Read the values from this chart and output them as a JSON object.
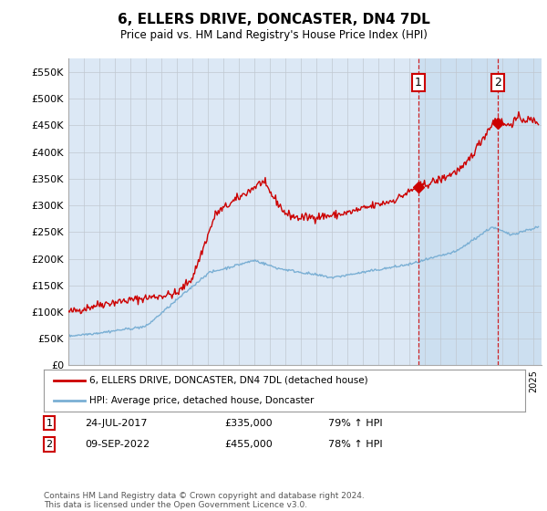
{
  "title": "6, ELLERS DRIVE, DONCASTER, DN4 7DL",
  "subtitle": "Price paid vs. HM Land Registry's House Price Index (HPI)",
  "ylabel_ticks": [
    "£0",
    "£50K",
    "£100K",
    "£150K",
    "£200K",
    "£250K",
    "£300K",
    "£350K",
    "£400K",
    "£450K",
    "£500K",
    "£550K"
  ],
  "ytick_values": [
    0,
    50000,
    100000,
    150000,
    200000,
    250000,
    300000,
    350000,
    400000,
    450000,
    500000,
    550000
  ],
  "ylim": [
    0,
    575000
  ],
  "red_line_color": "#cc0000",
  "blue_line_color": "#7aafd4",
  "vline_color": "#cc0000",
  "annotation1": {
    "label": "1",
    "date_str": "24-JUL-2017",
    "price": "£335,000",
    "hpi": "79% ↑ HPI",
    "x_year": 2017.56,
    "y_val": 335000
  },
  "annotation2": {
    "label": "2",
    "date_str": "09-SEP-2022",
    "price": "£455,000",
    "hpi": "78% ↑ HPI",
    "x_year": 2022.69,
    "y_val": 455000
  },
  "legend_entry1": "6, ELLERS DRIVE, DONCASTER, DN4 7DL (detached house)",
  "legend_entry2": "HPI: Average price, detached house, Doncaster",
  "footer": "Contains HM Land Registry data © Crown copyright and database right 2024.\nThis data is licensed under the Open Government Licence v3.0.",
  "xmin": 1995.0,
  "xmax": 2025.5,
  "background_color": "#dce8f5",
  "plot_bg_color": "#ffffff",
  "highlight_bg_color": "#ccdff0"
}
